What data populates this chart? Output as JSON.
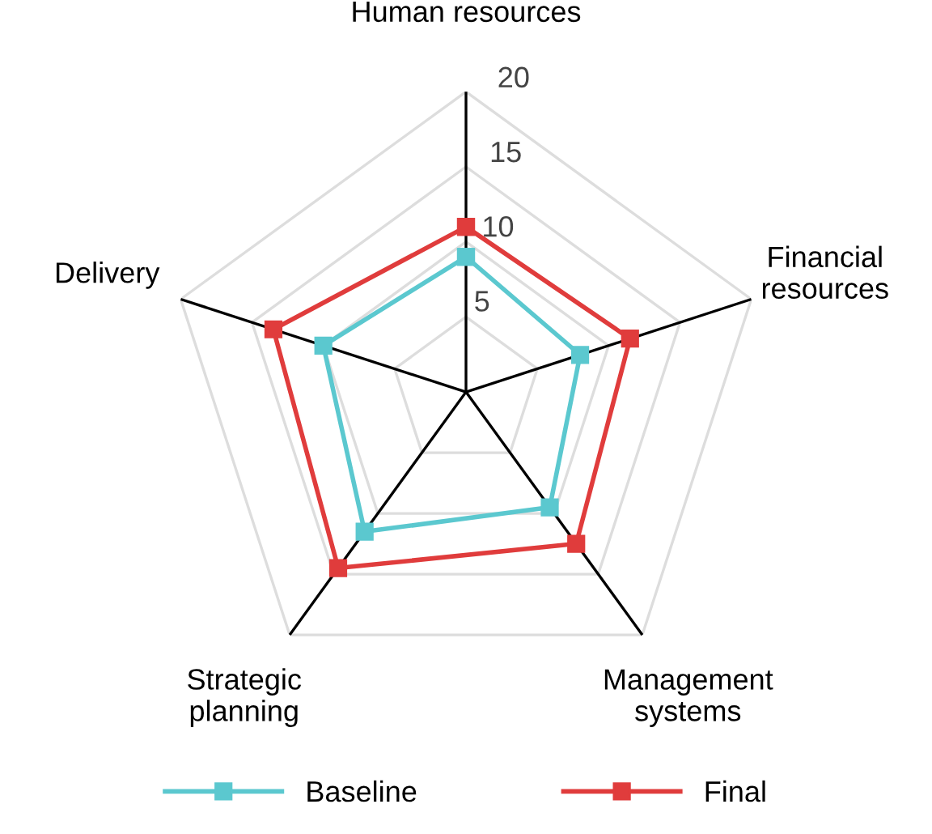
{
  "chart_data": {
    "type": "radar",
    "categories": [
      "Human resources",
      "Financial\nresources",
      "Management\nsystems",
      "Strategic\nplanning",
      "Delivery"
    ],
    "series": [
      {
        "name": "Baseline",
        "color": "#5bc8cf",
        "values": [
          9,
          8,
          9.5,
          11.5,
          10
        ]
      },
      {
        "name": "Final",
        "color": "#e03c3c",
        "values": [
          11,
          11.5,
          12.5,
          14.5,
          13.5
        ]
      }
    ],
    "ylim": [
      0,
      20
    ],
    "yticks": [
      5,
      10,
      15,
      20
    ],
    "grid": true,
    "legend": "bottom",
    "marker": "square",
    "line_style": "solid"
  }
}
